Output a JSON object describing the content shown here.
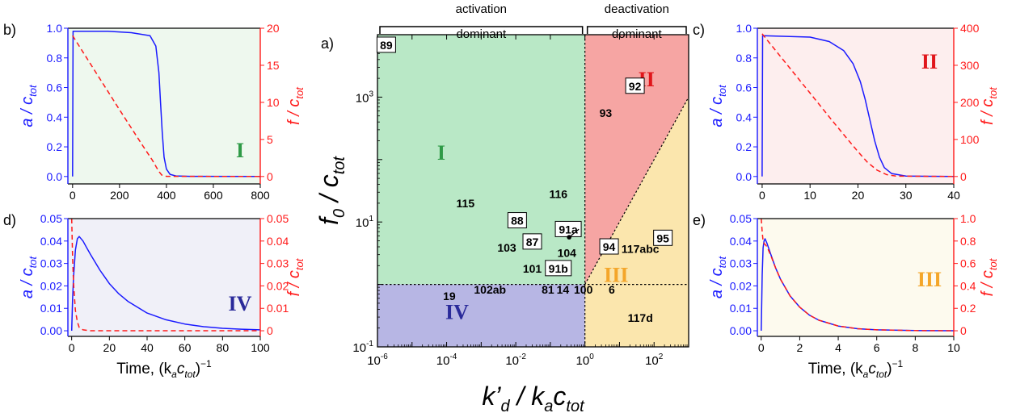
{
  "colors": {
    "blue": "#1a1aff",
    "red": "#ff1a1a",
    "region_I": "#b9e8c6",
    "region_II": "#f6a5a3",
    "region_III": "#fbe6ad",
    "region_IV": "#b7b6e4",
    "label_I": "#2e9a46",
    "label_II": "#e0161b",
    "label_III": "#f4a62a",
    "label_IV": "#2a2a9a",
    "bg_b": "#eef8ee",
    "bg_c": "#fdeeee",
    "bg_d": "#f0f0f8",
    "bg_e": "#fdfaee"
  },
  "chart_data": [
    {
      "id": "a",
      "type": "scatter",
      "panel_label": "a)",
      "xscale": "log",
      "yscale": "log",
      "xlim": [
        1e-06,
        1000
      ],
      "ylim": [
        0.1,
        10000
      ],
      "xticks": [
        {
          "v": 1e-06,
          "b": "10",
          "e": "-6"
        },
        {
          "v": 0.0001,
          "b": "10",
          "e": "-4"
        },
        {
          "v": 0.01,
          "b": "10",
          "e": "-2"
        },
        {
          "v": 1,
          "b": "10",
          "e": "0"
        },
        {
          "v": 100,
          "b": "10",
          "e": "2"
        }
      ],
      "yticks": [
        {
          "v": 0.1,
          "b": "10",
          "e": "-1"
        },
        {
          "v": 10,
          "b": "10",
          "e": "1"
        },
        {
          "v": 1000,
          "b": "10",
          "e": "3"
        }
      ],
      "xlabel": {
        "a": "k’",
        "asub": "d",
        "mid": " / k",
        "msub": "a",
        "c": "c",
        "csub": "tot"
      },
      "ylabel": {
        "a": "f",
        "asub": "0",
        "mid": " / c",
        "msub": "tot"
      },
      "brackets": [
        {
          "line1": "activation",
          "line2": "dominant",
          "x0": 1e-06,
          "x1": 1
        },
        {
          "line1": "deactivation",
          "line2": "dominant",
          "x0": 1,
          "x1": 1000
        }
      ],
      "regions": [
        {
          "name": "I",
          "label": "I",
          "lx": 7e-05,
          "ly": 100
        },
        {
          "name": "II",
          "label": "II",
          "lx": 60,
          "ly": 1500
        },
        {
          "name": "III",
          "label": "III",
          "lx": 8,
          "ly": 1.1
        },
        {
          "name": "IV",
          "label": "IV",
          "lx": 0.0002,
          "ly": 0.28
        }
      ],
      "boundaries": {
        "y_horizontal": 1,
        "x_vertical": 1,
        "diagonal": [
          [
            1,
            1
          ],
          [
            1000,
            1000
          ]
        ]
      },
      "points": [
        {
          "label": "89",
          "x": 1.8e-06,
          "y": 6800,
          "boxed": true
        },
        {
          "label": "92",
          "x": 28,
          "y": 1500,
          "boxed": true
        },
        {
          "label": "93",
          "x": 4,
          "y": 560,
          "boxed": false
        },
        {
          "label": "116",
          "x": 0.17,
          "y": 28,
          "boxed": false
        },
        {
          "label": "115",
          "x": 0.00035,
          "y": 20,
          "boxed": false
        },
        {
          "label": "88",
          "x": 0.011,
          "y": 10.5,
          "boxed": true
        },
        {
          "label": "91a",
          "x": 0.33,
          "y": 7.6,
          "boxed": true
        },
        {
          "label": "87",
          "x": 0.03,
          "y": 4.8,
          "boxed": true
        },
        {
          "label": "103",
          "x": 0.0055,
          "y": 3.9,
          "boxed": false
        },
        {
          "label": "104",
          "x": 0.3,
          "y": 3.2,
          "boxed": false
        },
        {
          "label": "94",
          "x": 5,
          "y": 4.0,
          "boxed": true
        },
        {
          "label": "117abc",
          "x": 40,
          "y": 3.7,
          "boxed": false
        },
        {
          "label": "95",
          "x": 180,
          "y": 5.5,
          "boxed": true
        },
        {
          "label": "101",
          "x": 0.03,
          "y": 1.8,
          "boxed": false
        },
        {
          "label": "91b",
          "x": 0.17,
          "y": 1.8,
          "boxed": true
        },
        {
          "label": "102ab",
          "x": 0.0018,
          "y": 0.83,
          "boxed": false
        },
        {
          "label": "81",
          "x": 0.085,
          "y": 0.83,
          "boxed": false
        },
        {
          "label": "14",
          "x": 0.23,
          "y": 0.83,
          "boxed": false
        },
        {
          "label": "100",
          "x": 0.9,
          "y": 0.83,
          "boxed": false
        },
        {
          "label": "6",
          "x": 6,
          "y": 0.83,
          "boxed": false
        },
        {
          "label": "19",
          "x": 0.00012,
          "y": 0.65,
          "boxed": false
        },
        {
          "label": "117d",
          "x": 40,
          "y": 0.29,
          "boxed": false
        }
      ],
      "marker": {
        "x": 0.35,
        "y": 5.7
      }
    },
    {
      "id": "b",
      "type": "line",
      "panel_label": "b)",
      "region": "I",
      "xlim": [
        -20,
        800
      ],
      "ylim_left": [
        -0.05,
        1.0
      ],
      "ylim_right": [
        -1,
        20
      ],
      "xticks": [
        0,
        200,
        400,
        600,
        800
      ],
      "yticks_left": [
        "0.0",
        "0.2",
        "0.4",
        "0.6",
        "0.8",
        "1.0"
      ],
      "yticks_left_values": [
        0,
        0.2,
        0.4,
        0.6,
        0.8,
        1.0
      ],
      "yticks_right": [
        "0",
        "5",
        "10",
        "15",
        "20"
      ],
      "yticks_right_values": [
        0,
        5,
        10,
        15,
        20
      ],
      "ylabel_left": {
        "a": "a",
        "mid": " / c",
        "sub": "tot"
      },
      "ylabel_right": {
        "a": "f",
        "mid": " / c",
        "sub": "tot"
      },
      "series": [
        {
          "axis": "left",
          "style": "solid",
          "x": [
            0,
            2,
            50,
            150,
            250,
            330,
            355,
            368,
            375,
            382,
            390,
            400,
            415,
            440,
            500,
            800
          ],
          "y": [
            0,
            0.98,
            0.98,
            0.98,
            0.97,
            0.95,
            0.88,
            0.7,
            0.5,
            0.3,
            0.13,
            0.05,
            0.015,
            0.004,
            0.001,
            0
          ]
        },
        {
          "axis": "right",
          "style": "dashed",
          "x": [
            0,
            100,
            200,
            300,
            340,
            360,
            370,
            380,
            400,
            800
          ],
          "y": [
            19,
            14,
            9,
            4.1,
            2.2,
            1.1,
            0.6,
            0.2,
            0.02,
            0
          ]
        }
      ]
    },
    {
      "id": "c",
      "type": "line",
      "panel_label": "c)",
      "region": "II",
      "xlim": [
        -1,
        40
      ],
      "ylim_left": [
        -0.05,
        1.0
      ],
      "ylim_right": [
        -20,
        400
      ],
      "xticks": [
        0,
        10,
        20,
        30,
        40
      ],
      "yticks_left": [
        "0.0",
        "0.2",
        "0.4",
        "0.6",
        "0.8",
        "1.0"
      ],
      "yticks_left_values": [
        0,
        0.2,
        0.4,
        0.6,
        0.8,
        1.0
      ],
      "yticks_right": [
        "0",
        "100",
        "200",
        "300",
        "400"
      ],
      "yticks_right_values": [
        0,
        100,
        200,
        300,
        400
      ],
      "ylabel_left": {
        "a": "a",
        "mid": " / c",
        "sub": "tot"
      },
      "ylabel_right": {
        "a": "f",
        "mid": " / c",
        "sub": "tot"
      },
      "series": [
        {
          "axis": "left",
          "style": "solid",
          "x": [
            0,
            0.1,
            5,
            10,
            14,
            17,
            19,
            20.5,
            21.5,
            22.5,
            23.5,
            24.5,
            25.5,
            27,
            30,
            40
          ],
          "y": [
            0,
            0.95,
            0.945,
            0.94,
            0.91,
            0.85,
            0.76,
            0.64,
            0.52,
            0.38,
            0.24,
            0.13,
            0.06,
            0.02,
            0.003,
            0
          ]
        },
        {
          "axis": "right",
          "style": "dashed",
          "x": [
            0,
            5,
            10,
            15,
            18,
            20,
            22,
            24,
            26,
            28,
            40
          ],
          "y": [
            385,
            305,
            225,
            145,
            98,
            67,
            38,
            17,
            5,
            1,
            0
          ]
        }
      ]
    },
    {
      "id": "d",
      "type": "line",
      "panel_label": "d)",
      "region": "IV",
      "xlim": [
        -2,
        100
      ],
      "ylim_left": [
        -0.0025,
        0.05
      ],
      "ylim_right": [
        -0.0025,
        0.05
      ],
      "xticks": [
        0,
        20,
        40,
        60,
        80,
        100
      ],
      "yticks_left": [
        "0.00",
        "0.01",
        "0.02",
        "0.03",
        "0.04",
        "0.05"
      ],
      "yticks_left_values": [
        0,
        0.01,
        0.02,
        0.03,
        0.04,
        0.05
      ],
      "yticks_right": [
        "0",
        "0.01",
        "0.02",
        "0.03",
        "0.04",
        "0.05"
      ],
      "yticks_right_values": [
        0,
        0.01,
        0.02,
        0.03,
        0.04,
        0.05
      ],
      "xlabel": {
        "pre": "Time, (k",
        "sub1": "a",
        "mid": "c",
        "sub2": "tot",
        "post": ")",
        "sup": "−1"
      },
      "ylabel_left": {
        "a": "a",
        "mid": " / c",
        "sub": "tot"
      },
      "ylabel_right": {
        "a": "f",
        "mid": " / c",
        "sub": "tot"
      },
      "series": [
        {
          "axis": "left",
          "style": "solid",
          "x": [
            0,
            0.5,
            1,
            2,
            3,
            4,
            6,
            8,
            10,
            15,
            20,
            25,
            30,
            40,
            50,
            60,
            70,
            80,
            90,
            100
          ],
          "y": [
            0,
            0.014,
            0.024,
            0.036,
            0.041,
            0.042,
            0.04,
            0.037,
            0.034,
            0.027,
            0.021,
            0.0165,
            0.013,
            0.0079,
            0.0049,
            0.003,
            0.0018,
            0.0011,
            0.0007,
            0.0004
          ]
        },
        {
          "axis": "right",
          "style": "dashed",
          "x": [
            0,
            0.5,
            1,
            2,
            3,
            4,
            6,
            10,
            100
          ],
          "y": [
            0.05,
            0.033,
            0.021,
            0.009,
            0.004,
            0.0015,
            0.0004,
            0,
            0
          ]
        }
      ]
    },
    {
      "id": "e",
      "type": "line",
      "panel_label": "e)",
      "region": "III",
      "xlim": [
        -0.2,
        10
      ],
      "ylim_left": [
        -0.0025,
        0.05
      ],
      "ylim_right": [
        -0.05,
        1.0
      ],
      "xticks": [
        0,
        2,
        4,
        6,
        8,
        10
      ],
      "yticks_left": [
        "0.00",
        "0.01",
        "0.02",
        "0.03",
        "0.04",
        "0.05"
      ],
      "yticks_left_values": [
        0,
        0.01,
        0.02,
        0.03,
        0.04,
        0.05
      ],
      "yticks_right": [
        "0",
        "0.2",
        "0.4",
        "0.6",
        "0.8",
        "1.0"
      ],
      "yticks_right_values": [
        0,
        0.2,
        0.4,
        0.6,
        0.8,
        1.0
      ],
      "xlabel": {
        "pre": "Time, (k",
        "sub1": "a",
        "mid": "c",
        "sub2": "tot",
        "post": ")",
        "sup": "−1"
      },
      "ylabel_left": {
        "a": "a",
        "mid": " / c",
        "sub": "tot"
      },
      "ylabel_right": {
        "a": "f",
        "mid": " / c",
        "sub": "tot"
      },
      "series": [
        {
          "axis": "left",
          "style": "solid",
          "x": [
            0,
            0.05,
            0.1,
            0.15,
            0.2,
            0.3,
            0.5,
            0.75,
            1,
            1.5,
            2,
            2.5,
            3,
            4,
            5,
            6,
            8,
            10
          ],
          "y": [
            0,
            0.025,
            0.037,
            0.04,
            0.041,
            0.039,
            0.034,
            0.028,
            0.023,
            0.0155,
            0.0105,
            0.007,
            0.0047,
            0.0021,
            0.0009,
            0.0004,
            0.0001,
            0
          ]
        },
        {
          "axis": "right",
          "style": "dashed",
          "x": [
            0,
            0.05,
            0.1,
            0.15,
            0.2,
            0.3,
            0.5,
            0.75,
            1,
            1.5,
            2,
            2.5,
            3,
            4,
            5,
            6,
            8,
            10
          ],
          "y": [
            1.0,
            0.88,
            0.8,
            0.78,
            0.77,
            0.75,
            0.67,
            0.56,
            0.46,
            0.31,
            0.21,
            0.14,
            0.094,
            0.042,
            0.018,
            0.008,
            0.002,
            0
          ]
        }
      ]
    }
  ]
}
